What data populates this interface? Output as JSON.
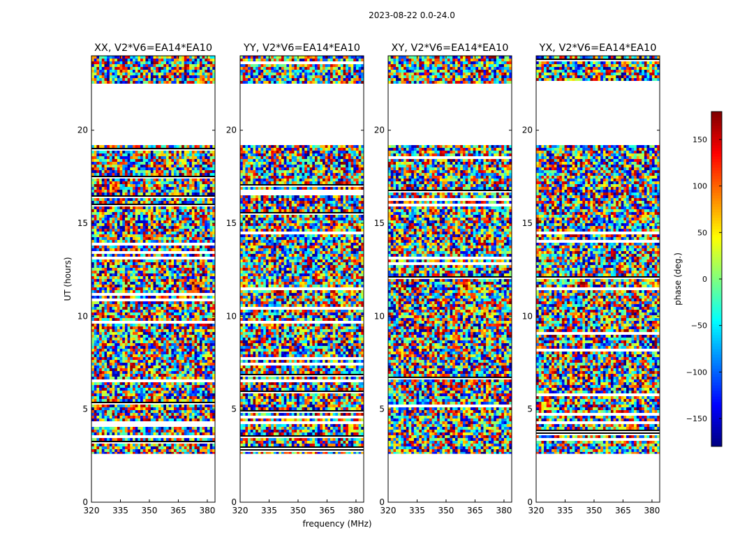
{
  "figure": {
    "suptitle": "2023-08-22 0.0-24.0",
    "colorbar_label": "phase (deg.)",
    "colorbar_ticks": [
      -150,
      -100,
      -50,
      0,
      50,
      100,
      150
    ],
    "colorbar_range": [
      -180,
      180
    ],
    "colormap": "jet",
    "colormap_stops": [
      "#00007f",
      "#0000ff",
      "#007fff",
      "#00ffff",
      "#7fff7f",
      "#ffff00",
      "#ff7f00",
      "#ff0000",
      "#7f0000"
    ],
    "axis_color": "#000000",
    "background": "#ffffff"
  },
  "chart_data": [
    {
      "type": "heatmap",
      "title": "XX, V2*V6=EA14*EA10",
      "xlabel": "",
      "ylabel": "UT (hours)",
      "xlim": [
        320,
        384
      ],
      "ylim": [
        0,
        24
      ],
      "xticks": [
        320,
        335,
        350,
        365,
        380
      ],
      "yticks": [
        0,
        5,
        10,
        15,
        20
      ],
      "data_coverage_hours": [
        [
          2.6,
          19.2
        ],
        [
          22.5,
          24
        ]
      ]
    },
    {
      "type": "heatmap",
      "title": "YY, V2*V6=EA14*EA10",
      "xlabel": "frequency (MHz)",
      "ylabel": "",
      "xlim": [
        320,
        384
      ],
      "ylim": [
        0,
        24
      ],
      "xticks": [
        320,
        335,
        350,
        365,
        380
      ],
      "yticks": [
        0,
        5,
        10,
        15,
        20
      ],
      "data_coverage_hours": [
        [
          2.6,
          19.2
        ],
        [
          22.5,
          24
        ]
      ]
    },
    {
      "type": "heatmap",
      "title": "XY, V2*V6=EA14*EA10",
      "xlabel": "",
      "ylabel": "",
      "xlim": [
        320,
        384
      ],
      "ylim": [
        0,
        24
      ],
      "xticks": [
        320,
        335,
        350,
        365,
        380
      ],
      "yticks": [
        0,
        5,
        10,
        15,
        20
      ],
      "data_coverage_hours": [
        [
          2.6,
          19.2
        ],
        [
          22.5,
          24
        ]
      ]
    },
    {
      "type": "heatmap",
      "title": "YX, V2*V6=EA14*EA10",
      "xlabel": "",
      "ylabel": "",
      "xlim": [
        320,
        384
      ],
      "ylim": [
        0,
        24
      ],
      "xticks": [
        320,
        335,
        350,
        365,
        380
      ],
      "yticks": [
        0,
        5,
        10,
        15,
        20
      ],
      "data_coverage_hours": [
        [
          2.6,
          19.2
        ],
        [
          22.5,
          24
        ]
      ]
    }
  ]
}
